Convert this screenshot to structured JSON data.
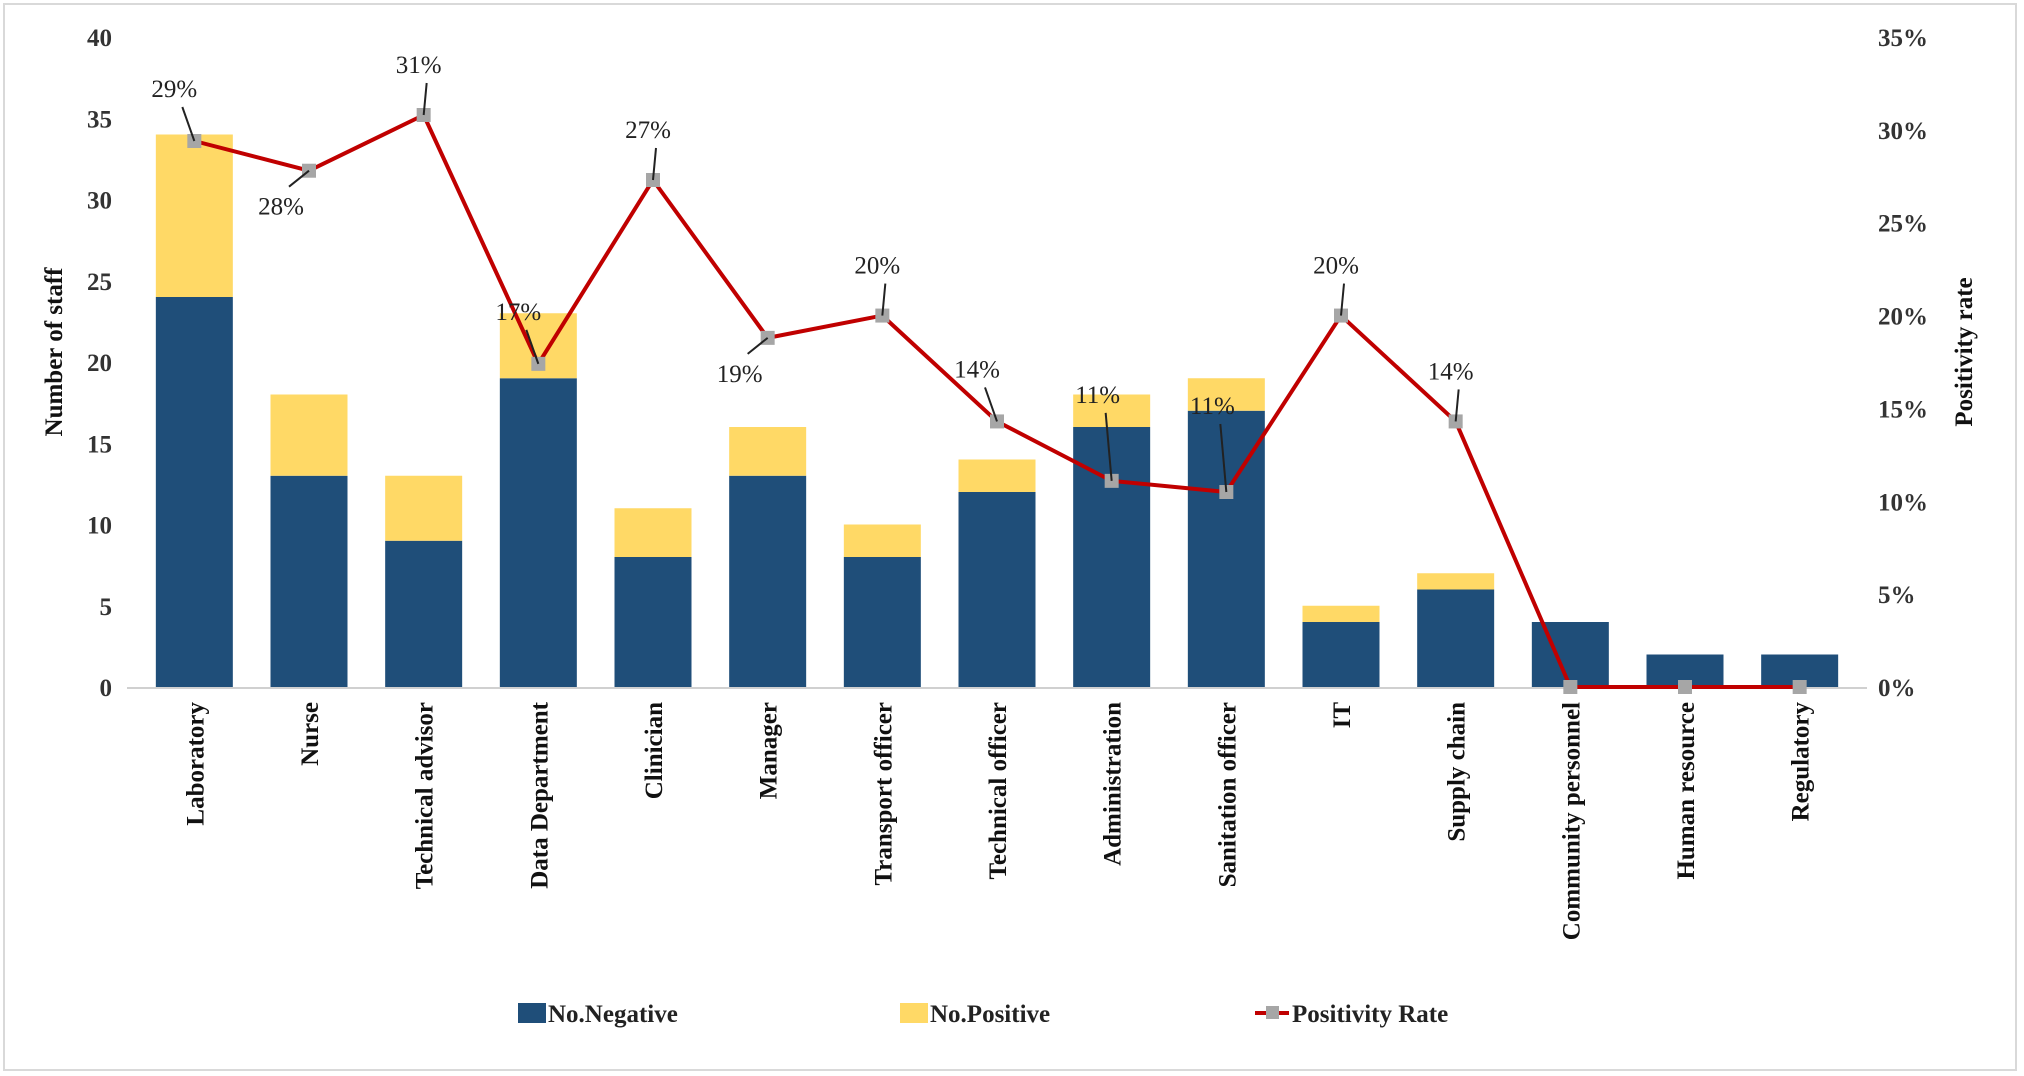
{
  "chart_data": {
    "type": "bar",
    "subtype": "stacked-bar-with-line-secondary-axis",
    "title": "",
    "categories": [
      "Laboratory",
      "Nurse",
      "Technical advisor",
      "Data Department",
      "Clinician",
      "Manager",
      "Transport officer",
      "Technical officer",
      "Administration",
      "Sanitation officer",
      "IT",
      "Supply chain",
      "Community personnel",
      "Human resource",
      "Regulatory"
    ],
    "series": [
      {
        "name": "No.Negative",
        "type": "bar",
        "axis": "left",
        "color": "#1f4e79",
        "values": [
          24,
          13,
          9,
          19,
          8,
          13,
          8,
          12,
          16,
          17,
          4,
          6,
          4,
          2,
          2
        ]
      },
      {
        "name": "No.Positive",
        "type": "bar",
        "axis": "left",
        "color": "#ffd966",
        "values": [
          10,
          5,
          4,
          4,
          3,
          3,
          2,
          2,
          2,
          2,
          1,
          1,
          0,
          0,
          0
        ]
      },
      {
        "name": "Positivity Rate",
        "type": "line",
        "axis": "right",
        "color": "#c00000",
        "marker_color": "#a6a6a6",
        "values": [
          0.294,
          0.278,
          0.308,
          0.174,
          0.273,
          0.188,
          0.2,
          0.143,
          0.111,
          0.105,
          0.2,
          0.143,
          0,
          0,
          0
        ]
      }
    ],
    "data_labels": [
      {
        "index": 0,
        "text": "29%",
        "pos": "above-left"
      },
      {
        "index": 1,
        "text": "28%",
        "pos": "below-left"
      },
      {
        "index": 2,
        "text": "31%",
        "pos": "above"
      },
      {
        "index": 3,
        "text": "17%",
        "pos": "above-left"
      },
      {
        "index": 4,
        "text": "27%",
        "pos": "above"
      },
      {
        "index": 5,
        "text": "19%",
        "pos": "below-left"
      },
      {
        "index": 6,
        "text": "20%",
        "pos": "above"
      },
      {
        "index": 7,
        "text": "14%",
        "pos": "above-left"
      },
      {
        "index": 8,
        "text": "11%",
        "pos": "above-far"
      },
      {
        "index": 9,
        "text": "11%",
        "pos": "above-far"
      },
      {
        "index": 10,
        "text": "20%",
        "pos": "above"
      },
      {
        "index": 11,
        "text": "14%",
        "pos": "above"
      }
    ],
    "ylabel": "Number of staff",
    "y2label": "Positivity rate",
    "xlabel": "",
    "ylim": [
      0,
      40
    ],
    "yticks": [
      0,
      5,
      10,
      15,
      20,
      25,
      30,
      35,
      40
    ],
    "y2lim": [
      0,
      0.35
    ],
    "y2ticks": [
      "0%",
      "5%",
      "10%",
      "15%",
      "20%",
      "25%",
      "30%",
      "35%"
    ],
    "grid": false,
    "legend": {
      "placement": "bottom",
      "items": [
        "No.Negative",
        "No.Positive",
        "Positivity Rate"
      ]
    }
  }
}
